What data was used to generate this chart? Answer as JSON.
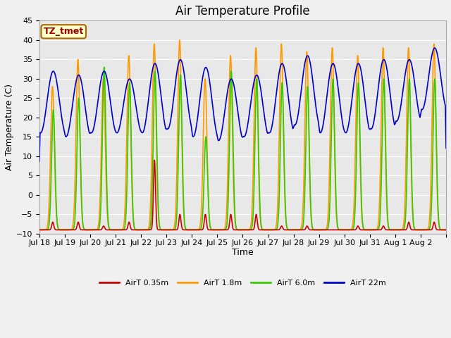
{
  "title": "Air Temperature Profile",
  "xlabel": "Time",
  "ylabel": "Air Temperature (C)",
  "ylim": [
    -10,
    45
  ],
  "yticks": [
    -10,
    -5,
    0,
    5,
    10,
    15,
    20,
    25,
    30,
    35,
    40,
    45
  ],
  "xtick_labels": [
    "Jul 18",
    "Jul 19",
    "Jul 20",
    "Jul 21",
    "Jul 22",
    "Jul 23",
    "Jul 24",
    "Jul 25",
    "Jul 26",
    "Jul 27",
    "Jul 28",
    "Jul 29",
    "Jul 30",
    "Jul 31",
    "Aug 1",
    "Aug 2"
  ],
  "legend_labels": [
    "AirT 0.35m",
    "AirT 1.8m",
    "AirT 6.0m",
    "AirT 22m"
  ],
  "colors": [
    "#cc0000",
    "#ff9900",
    "#33cc00",
    "#0000cc"
  ],
  "annotation_text": "TZ_tmet",
  "annotation_color": "#990000",
  "annotation_bg": "#ffffcc",
  "annotation_edge": "#aa6600",
  "fig_bg": "#f0f0f0",
  "axes_bg": "#e8e8e8",
  "grid_color": "#ffffff",
  "title_fontsize": 12,
  "tick_fontsize": 8,
  "label_fontsize": 9,
  "legend_fontsize": 8,
  "n_days": 16,
  "pts_per_day": 240,
  "blue_mids": [
    24,
    23,
    24,
    23,
    25,
    26,
    24,
    22,
    23,
    25,
    27,
    25,
    25,
    26,
    27,
    30
  ],
  "blue_amps": [
    8,
    8,
    8,
    7,
    9,
    9,
    9,
    8,
    8,
    9,
    9,
    9,
    9,
    9,
    8,
    8
  ],
  "orange_peaks": [
    -9,
    -9,
    -9,
    -9,
    -9,
    -9,
    -9,
    -9,
    -9,
    -9,
    -9,
    -9,
    -9,
    -9,
    -9,
    -9
  ],
  "orange_tops": [
    28,
    35,
    30,
    36,
    39,
    40,
    30,
    36,
    38,
    39,
    37,
    38,
    36,
    38,
    38,
    39
  ],
  "green_peaks": [
    -9,
    -9,
    -9,
    -9,
    -9,
    -9,
    -9,
    -9,
    -9,
    -9,
    -9,
    -9,
    -9,
    -9,
    -9,
    -9
  ],
  "green_tops": [
    22,
    25,
    33,
    29,
    32,
    31,
    15,
    32,
    30,
    29,
    28,
    30,
    29,
    30,
    30,
    30
  ],
  "red_peaks": [
    -9,
    -9,
    -9,
    -9,
    -9,
    -9,
    -9,
    -9,
    -9,
    -9,
    -9,
    -9,
    -9,
    -9,
    -9,
    -9
  ],
  "red_tops": [
    -7,
    -7,
    -8,
    -7,
    9,
    -5,
    -5,
    -5,
    -5,
    -8,
    -8,
    -9,
    -8,
    -8,
    -7,
    -7
  ]
}
